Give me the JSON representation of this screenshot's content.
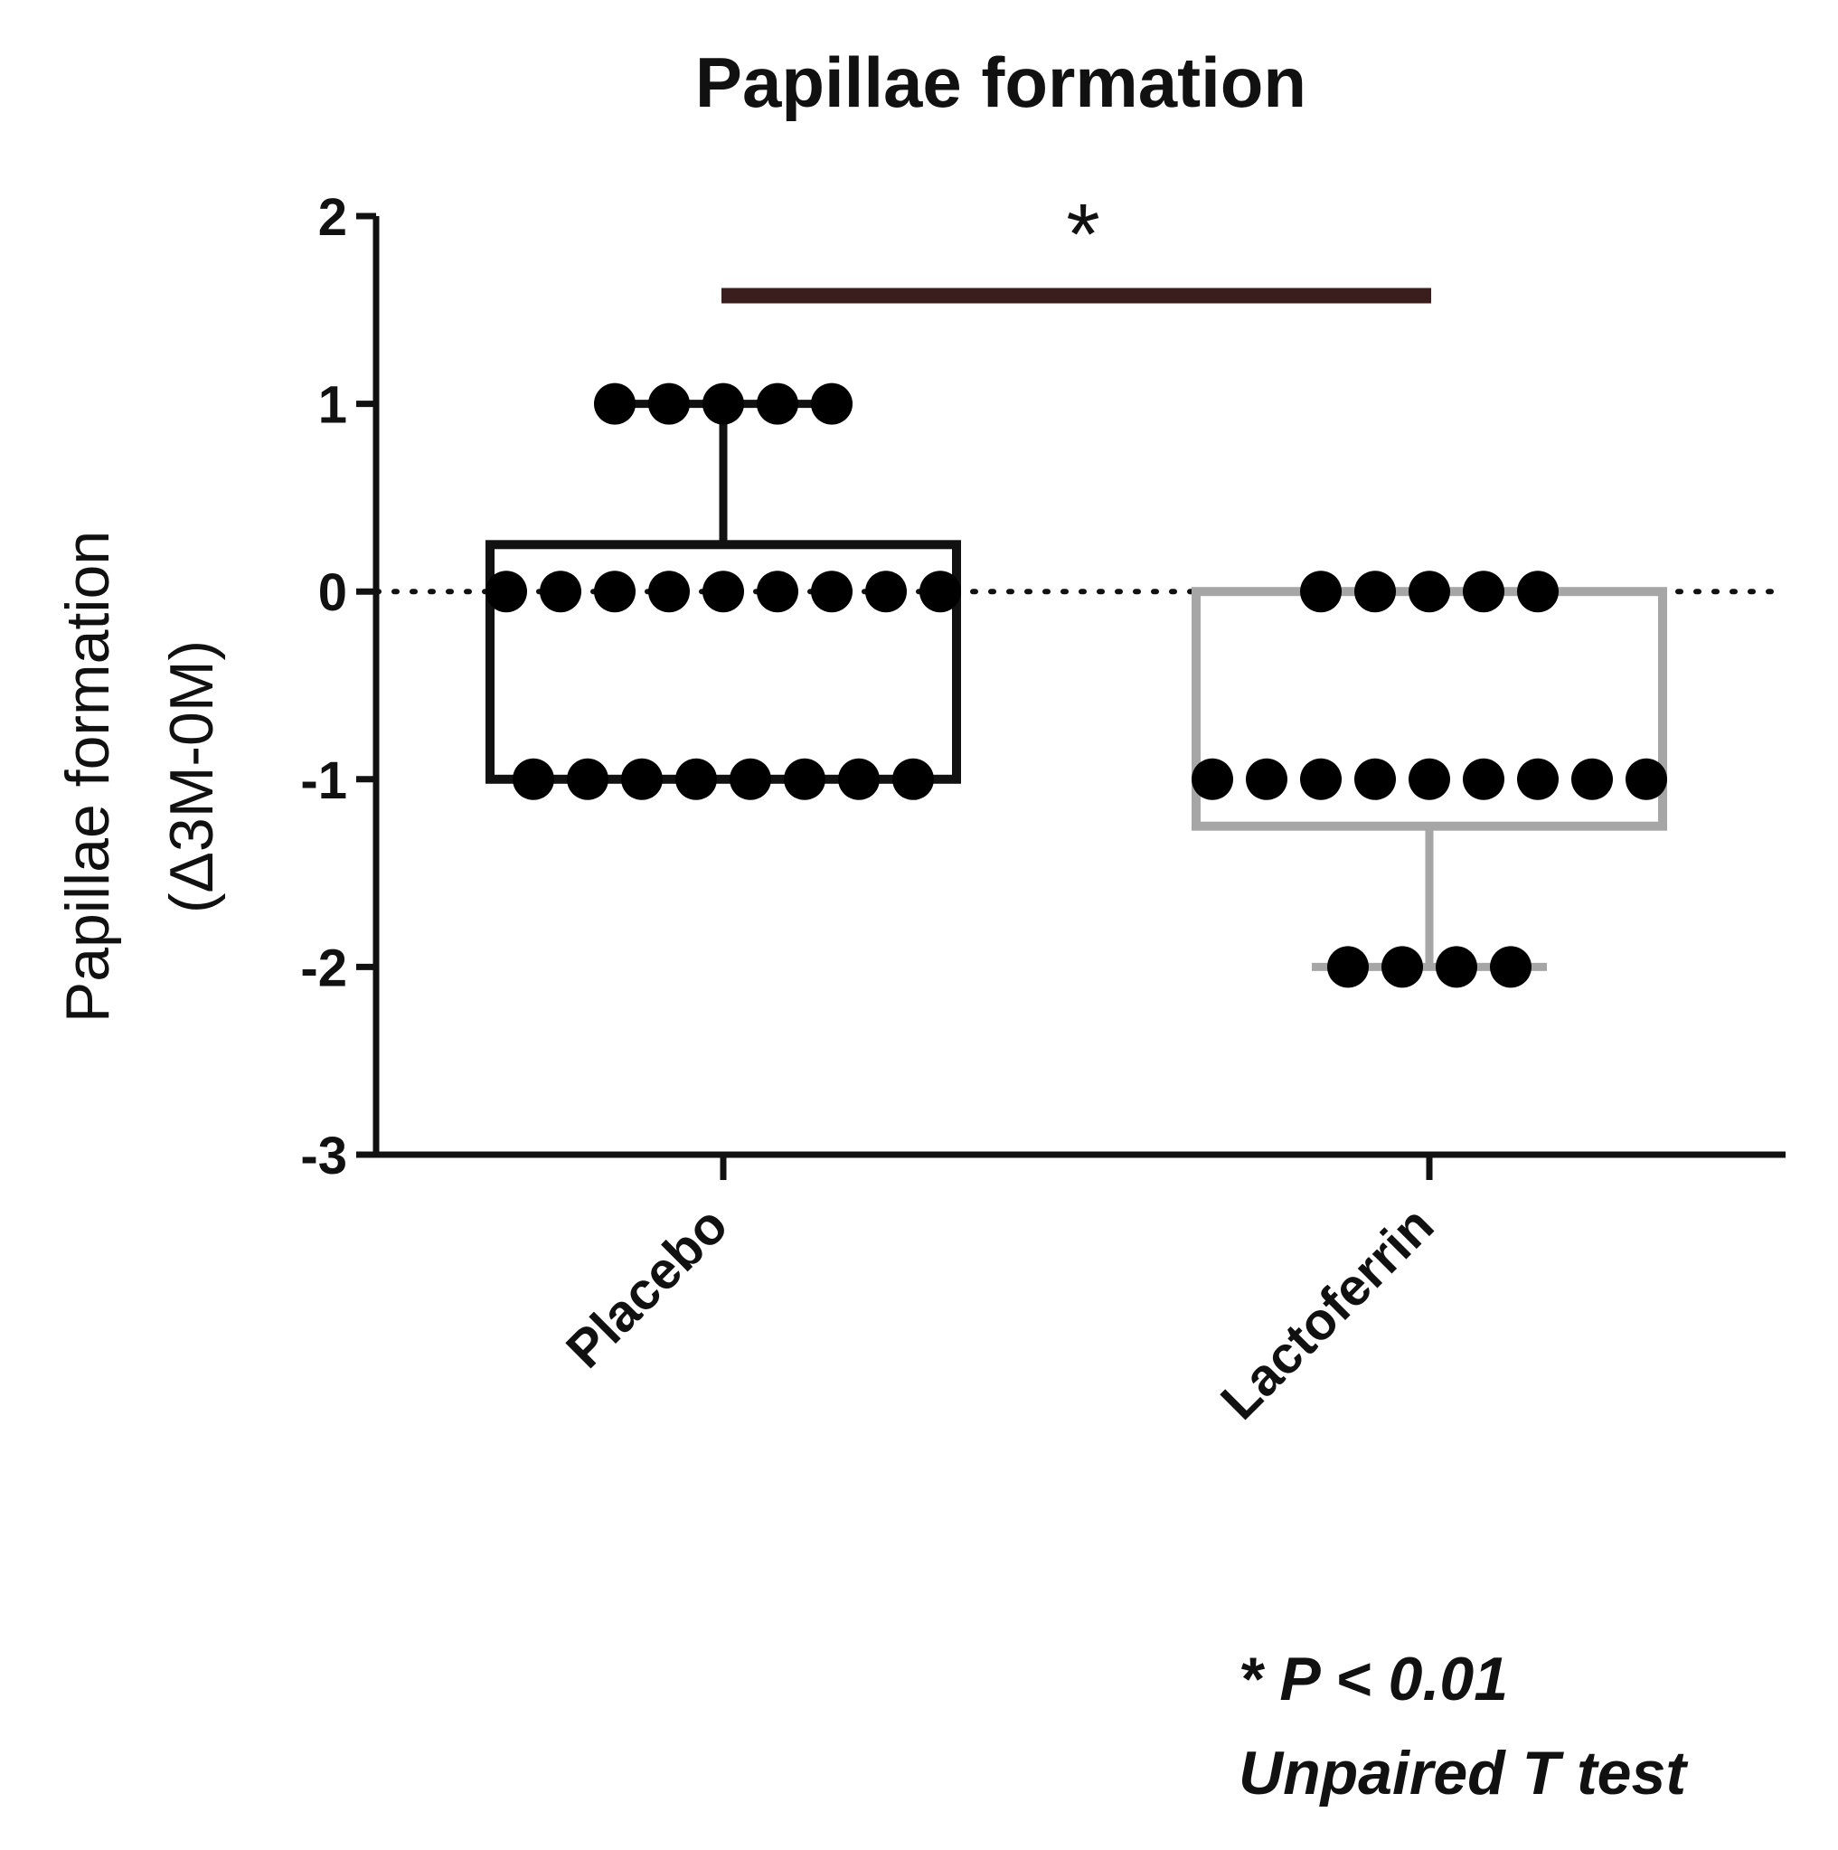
{
  "chart_data": {
    "type": "box",
    "title": "Papillae formation",
    "ylabel_line1": "Papillae formation",
    "ylabel_line2": "(Δ3M-0M)",
    "xlabel": "",
    "ylim": [
      -3,
      2
    ],
    "yticks": [
      "2",
      "1",
      "0",
      "-1",
      "-2",
      "-3"
    ],
    "ytick_values": [
      2,
      1,
      0,
      -1,
      -2,
      -3
    ],
    "categories": [
      "Placebo",
      "Lactoferrin"
    ],
    "reference_line": 0,
    "significance_marker": "*",
    "series": [
      {
        "name": "Placebo",
        "color": "#111111",
        "box": {
          "q1": -1,
          "q3": 0.25,
          "whisker_low": -1,
          "whisker_high": 1
        },
        "points": [
          {
            "value": 1,
            "count": 5
          },
          {
            "value": 0,
            "count": 9
          },
          {
            "value": -1,
            "count": 8
          }
        ]
      },
      {
        "name": "Lactoferrin",
        "color": "#a6a6a6",
        "box": {
          "q1": -1.25,
          "q3": 0,
          "whisker_low": -2,
          "whisker_high": 0
        },
        "points": [
          {
            "value": 0,
            "count": 5
          },
          {
            "value": -1,
            "count": 9
          },
          {
            "value": -2,
            "count": 4
          }
        ]
      }
    ],
    "annotation_line1": "* P < 0.01",
    "annotation_line2": "Unpaired T test"
  }
}
